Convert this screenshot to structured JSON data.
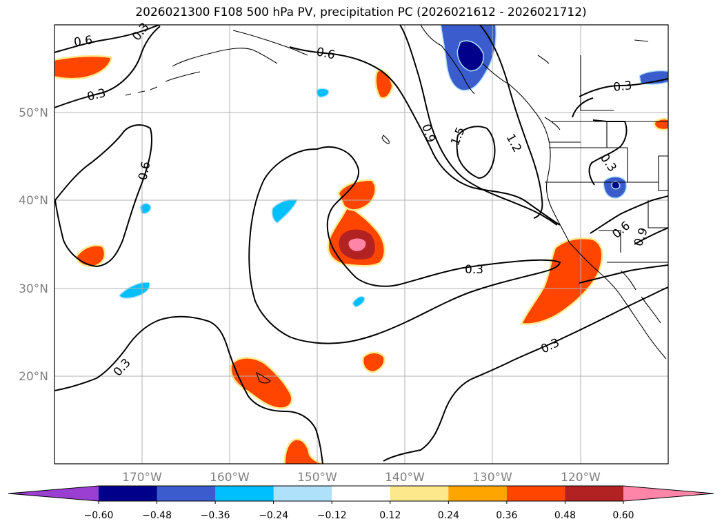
{
  "title": "2026021300 F108 500 hPa PV, precipitation PC (2026021612 - 2026021712)",
  "lat_labels": [
    "50°N",
    "40°N",
    "30°N",
    "20°N"
  ],
  "lon_labels": [
    "170°W",
    "160°W",
    "150°W",
    "140°W",
    "130°W",
    "120°W"
  ],
  "contour_labels": {
    "c1": "0.6",
    "c2": "0.3",
    "c3": "0.3",
    "c4": "0.6",
    "c5": "0.6",
    "c6": "0.9",
    "c7": "1.5",
    "c8": "1.2",
    "c9": "0.3",
    "c10": "0.3",
    "c11": "0.6",
    "c12": "0.9",
    "c13": "0.3",
    "c14": "0.3",
    "c15": "0.3"
  },
  "colorbar": {
    "colors": [
      "#9a3fd2",
      "#00008b",
      "#3a5ccc",
      "#00bfff",
      "#afe1fa",
      "#ffffff",
      "#fde98c",
      "#ffa500",
      "#ff4500",
      "#b22222",
      "#ff85a8"
    ],
    "tick_labels": [
      "−0.60",
      "−0.48",
      "−0.36",
      "−0.24",
      "−0.12",
      "0.12",
      "0.24",
      "0.36",
      "0.48",
      "0.60"
    ]
  },
  "palette": {
    "pos_outer": "#fde98c",
    "pos_mid": "#ffa500",
    "pos_main": "#ff4500",
    "pos_high": "#b22222",
    "pos_max": "#ff85a8",
    "neg_light": "#afe1fa",
    "neg_mid": "#00bfff",
    "neg_main": "#3a5ccc",
    "neg_max": "#00008b",
    "gridline": "#b0b0b0"
  }
}
